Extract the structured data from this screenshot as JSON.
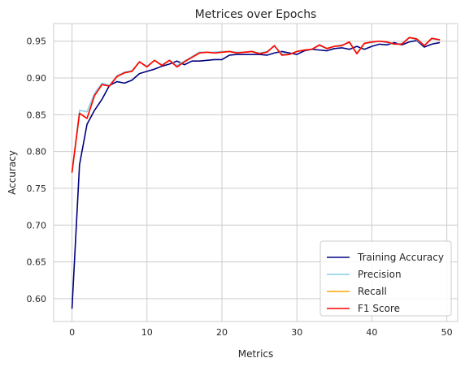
{
  "chart_data": {
    "type": "line",
    "title": "Metrices over Epochs",
    "xlabel": "Metrics",
    "ylabel": "Accuracy",
    "xlim": [
      -2.45,
      51.45
    ],
    "ylim": [
      0.569,
      0.974
    ],
    "xticks": [
      0,
      10,
      20,
      30,
      40,
      50
    ],
    "yticks": [
      0.6,
      0.65,
      0.7,
      0.75,
      0.8,
      0.85,
      0.9,
      0.95
    ],
    "ytick_labels": [
      "0.60",
      "0.65",
      "0.70",
      "0.75",
      "0.80",
      "0.85",
      "0.90",
      "0.95"
    ],
    "grid": true,
    "legend_position": "lower-right",
    "x": [
      0,
      1,
      2,
      3,
      4,
      5,
      6,
      7,
      8,
      9,
      10,
      11,
      12,
      13,
      14,
      15,
      16,
      17,
      18,
      19,
      20,
      21,
      22,
      23,
      24,
      25,
      26,
      27,
      28,
      29,
      30,
      31,
      32,
      33,
      34,
      35,
      36,
      37,
      38,
      39,
      40,
      41,
      42,
      43,
      44,
      45,
      46,
      47,
      48,
      49
    ],
    "series": [
      {
        "name": "Training Accuracy",
        "color": "#00007f",
        "values": [
          0.587,
          0.782,
          0.837,
          0.856,
          0.871,
          0.89,
          0.895,
          0.893,
          0.897,
          0.906,
          0.909,
          0.912,
          0.916,
          0.919,
          0.923,
          0.918,
          0.923,
          0.923,
          0.924,
          0.925,
          0.925,
          0.931,
          0.932,
          0.932,
          0.932,
          0.932,
          0.931,
          0.934,
          0.936,
          0.934,
          0.932,
          0.937,
          0.939,
          0.938,
          0.937,
          0.94,
          0.941,
          0.939,
          0.943,
          0.939,
          0.943,
          0.946,
          0.945,
          0.948,
          0.945,
          0.949,
          0.951,
          0.942,
          0.946,
          0.948
        ]
      },
      {
        "name": "Precision",
        "color": "#87ceeb",
        "values": [
          0.772,
          0.856,
          0.854,
          0.879,
          0.893,
          0.89,
          0.903,
          0.908,
          0.91,
          0.922,
          0.916,
          0.924,
          0.918,
          0.924,
          0.917,
          0.923,
          0.929,
          0.935,
          0.935,
          0.935,
          0.936,
          0.936,
          0.935,
          0.935,
          0.936,
          0.934,
          0.936,
          0.943,
          0.933,
          0.932,
          0.936,
          0.938,
          0.939,
          0.944,
          0.94,
          0.943,
          0.945,
          0.948,
          0.934,
          0.947,
          0.948,
          0.95,
          0.948,
          0.946,
          0.947,
          0.955,
          0.952,
          0.944,
          0.953,
          0.952
        ]
      },
      {
        "name": "Recall",
        "color": "#ffa500",
        "values": [
          0.772,
          0.852,
          0.845,
          0.876,
          0.891,
          0.889,
          0.902,
          0.907,
          0.909,
          0.922,
          0.915,
          0.924,
          0.917,
          0.924,
          0.915,
          0.922,
          0.928,
          0.934,
          0.935,
          0.934,
          0.935,
          0.936,
          0.934,
          0.935,
          0.936,
          0.933,
          0.935,
          0.944,
          0.931,
          0.932,
          0.936,
          0.938,
          0.939,
          0.945,
          0.94,
          0.943,
          0.944,
          0.949,
          0.933,
          0.947,
          0.949,
          0.95,
          0.949,
          0.946,
          0.946,
          0.955,
          0.953,
          0.944,
          0.954,
          0.952
        ]
      },
      {
        "name": "F1 Score",
        "color": "#ff0000",
        "values": [
          0.772,
          0.852,
          0.845,
          0.876,
          0.891,
          0.889,
          0.902,
          0.907,
          0.909,
          0.922,
          0.915,
          0.924,
          0.917,
          0.924,
          0.915,
          0.922,
          0.928,
          0.934,
          0.935,
          0.934,
          0.935,
          0.936,
          0.934,
          0.935,
          0.936,
          0.933,
          0.935,
          0.944,
          0.931,
          0.932,
          0.936,
          0.938,
          0.939,
          0.945,
          0.94,
          0.943,
          0.944,
          0.949,
          0.933,
          0.947,
          0.949,
          0.95,
          0.949,
          0.946,
          0.946,
          0.955,
          0.953,
          0.944,
          0.954,
          0.952
        ]
      }
    ]
  }
}
